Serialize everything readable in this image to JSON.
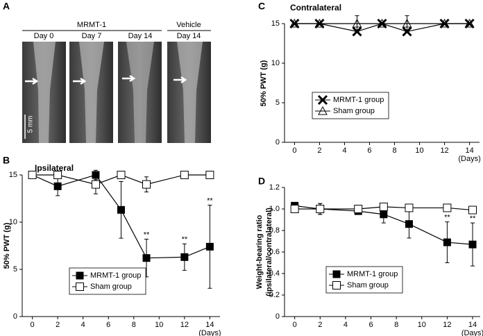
{
  "panel_a": {
    "label": "A",
    "groups": [
      "MRMT-1",
      "Vehicle"
    ],
    "days": [
      "Day 0",
      "Day 7",
      "Day 14",
      "Day 14"
    ],
    "scale": "5 mm"
  },
  "chart_data": [
    {
      "type": "line",
      "panel": "B",
      "title": "Ipsilateral",
      "ylabel": [
        "50% PWT (g)"
      ],
      "xlabel": "(Days)",
      "xlim": [
        -0.8,
        14.8
      ],
      "ylim": [
        0,
        15
      ],
      "xticks": [
        0,
        2,
        4,
        6,
        8,
        10,
        12,
        14
      ],
      "yticks": [
        0,
        5,
        10,
        15
      ],
      "x": [
        0,
        2,
        5,
        7,
        9,
        12,
        14
      ],
      "legend": true,
      "series": [
        {
          "name": "MRMT-1 group",
          "color": "#000000",
          "marker": "filled-square",
          "values": [
            15,
            13.8,
            15,
            11.3,
            6.2,
            6.3,
            7.4
          ],
          "errors": [
            0,
            1,
            0.5,
            3,
            2,
            1.4,
            4.4
          ]
        },
        {
          "name": "Sham group",
          "color": "#000000",
          "marker": "open-square",
          "values": [
            15,
            15,
            14,
            15,
            14,
            15,
            15
          ],
          "errors": [
            0,
            0,
            1,
            0,
            0.8,
            0,
            0
          ]
        }
      ],
      "annotations": [
        {
          "text": "**",
          "series": 0,
          "index": 4
        },
        {
          "text": "**",
          "series": 0,
          "index": 5
        },
        {
          "text": "**",
          "series": 0,
          "index": 6
        }
      ]
    },
    {
      "type": "line",
      "panel": "C",
      "title": "Contralateral",
      "ylabel": [
        "50% PWT (g)"
      ],
      "xlabel": "(Days)",
      "xlim": [
        -0.8,
        14.8
      ],
      "ylim": [
        0,
        15
      ],
      "xticks": [
        0,
        2,
        4,
        6,
        8,
        10,
        12,
        14
      ],
      "yticks": [
        0,
        5,
        10,
        15
      ],
      "x": [
        0,
        2,
        5,
        7,
        9,
        12,
        14
      ],
      "legend": true,
      "series": [
        {
          "name": "MRMT-1 group",
          "color": "#000000",
          "marker": "x",
          "values": [
            15,
            15,
            14,
            15,
            14,
            15,
            15
          ],
          "errors": [
            0,
            0,
            0,
            0,
            0,
            0,
            0
          ]
        },
        {
          "name": "Sham group",
          "color": "#000000",
          "marker": "open-triangle",
          "values": [
            15,
            15,
            15,
            15,
            15,
            15,
            15
          ],
          "errors": [
            0,
            0,
            1,
            0,
            1,
            0,
            0
          ]
        }
      ],
      "annotations": []
    },
    {
      "type": "line",
      "panel": "D",
      "title": "",
      "ylabel": [
        "Weight-bearing ratio",
        "(ipsilateral/contralateral)"
      ],
      "xlabel": "(Days)",
      "xlim": [
        -0.8,
        14.6
      ],
      "ylim": [
        0,
        1.2
      ],
      "xticks": [
        0,
        2,
        4,
        6,
        8,
        10,
        12,
        14
      ],
      "yticks": [
        0,
        0.2,
        0.4,
        0.6,
        0.8,
        {
          "value": 1,
          "label": "1.0"
        },
        1.2
      ],
      "x": [
        0,
        2,
        5,
        7,
        9,
        12,
        14
      ],
      "legend": true,
      "series": [
        {
          "name": "MRMT-1 group",
          "color": "#000000",
          "marker": "filled-square",
          "values": [
            1.03,
            1.0,
            0.98,
            0.95,
            0.86,
            0.69,
            0.67
          ],
          "errors": [
            0.02,
            0.05,
            0.02,
            0.08,
            0.13,
            0.19,
            0.2
          ]
        },
        {
          "name": "Sham group",
          "color": "#000000",
          "marker": "open-square",
          "values": [
            1.0,
            1.0,
            1.0,
            1.02,
            1.01,
            1.01,
            0.99
          ],
          "errors": [
            0.02,
            0.05,
            0.03,
            0.02,
            0,
            0,
            0.02
          ]
        }
      ],
      "annotations": [
        {
          "text": "**",
          "series": 0,
          "index": 5
        },
        {
          "text": "**",
          "series": 0,
          "index": 6
        }
      ]
    }
  ]
}
